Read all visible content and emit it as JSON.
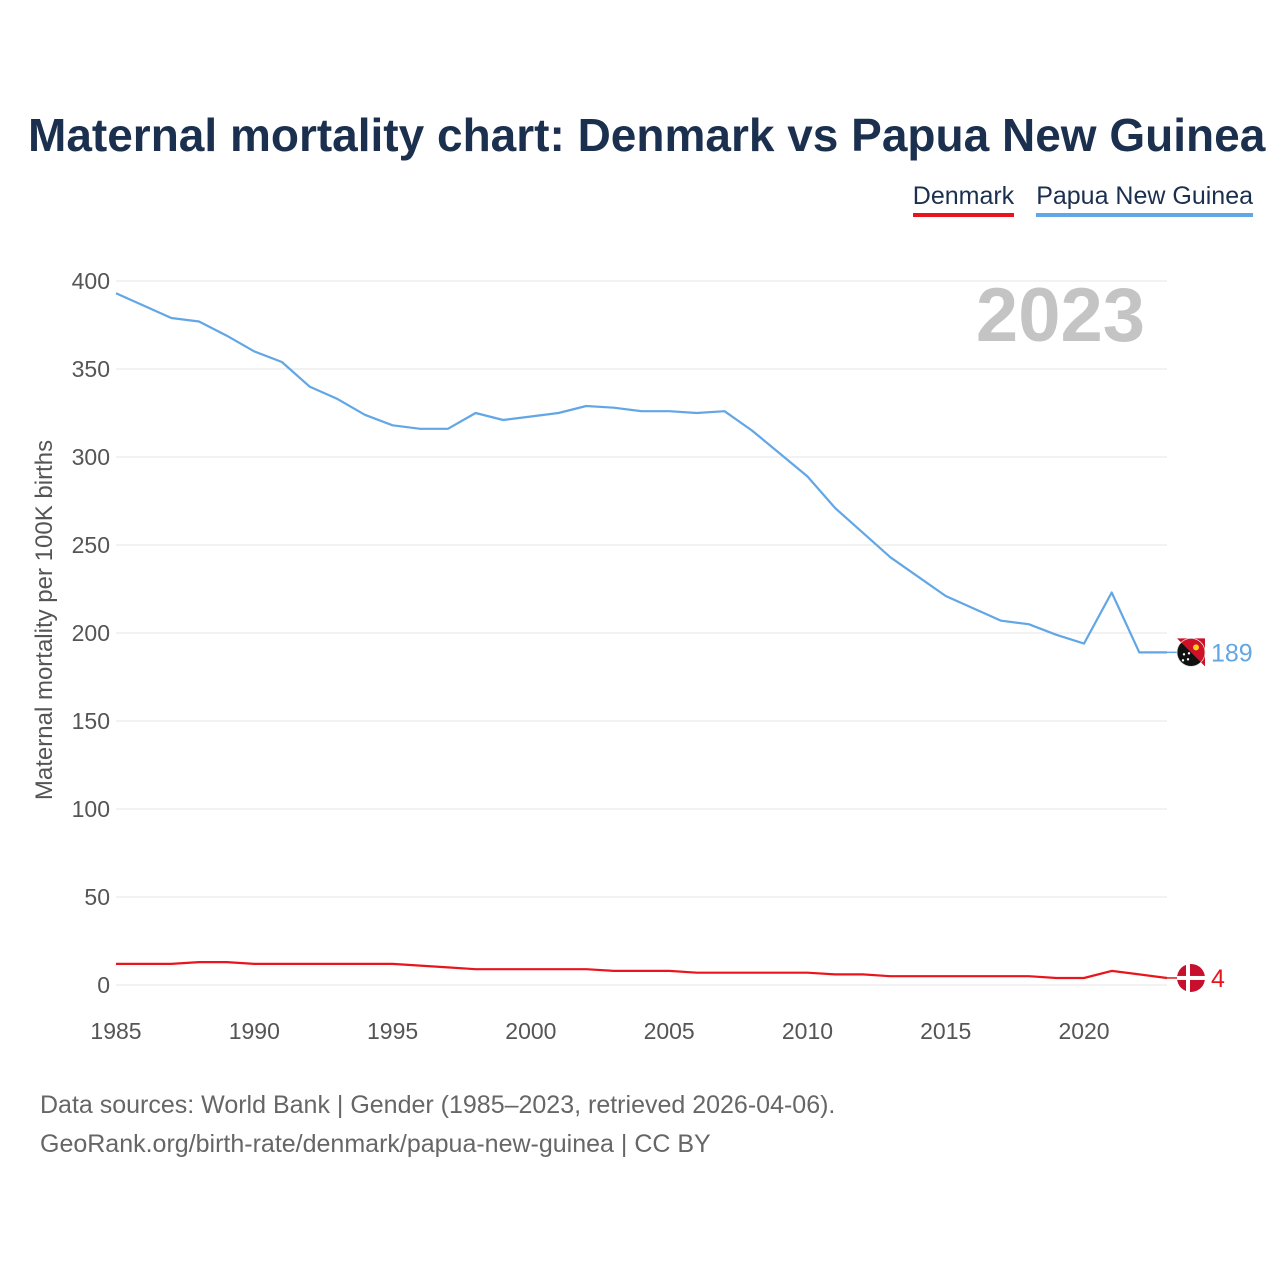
{
  "title": "Maternal mortality chart: Denmark vs Papua New Guinea",
  "legend": [
    {
      "label": "Denmark",
      "color": "#e8161c"
    },
    {
      "label": "Papua New Guinea",
      "color": "#62a6e6"
    }
  ],
  "year_label": "2023",
  "footer": {
    "line1": "Data sources: World Bank | Gender (1985–2023, retrieved 2026-04-06).",
    "line2": "GeoRank.org/birth-rate/denmark/papua-new-guinea | CC BY"
  },
  "chart_data": {
    "type": "line",
    "title": "Maternal mortality chart: Denmark vs Papua New Guinea",
    "xlabel": "",
    "ylabel": "Maternal mortality per 100K births",
    "xlim": [
      1985,
      2023
    ],
    "ylim": [
      0,
      400
    ],
    "x_ticks": [
      1985,
      1990,
      1995,
      2000,
      2005,
      2010,
      2015,
      2020
    ],
    "y_ticks": [
      0,
      50,
      100,
      150,
      200,
      250,
      300,
      350,
      400
    ],
    "grid": true,
    "legend_position": "top-right",
    "x": [
      1985,
      1986,
      1987,
      1988,
      1989,
      1990,
      1991,
      1992,
      1993,
      1994,
      1995,
      1996,
      1997,
      1998,
      1999,
      2000,
      2001,
      2002,
      2003,
      2004,
      2005,
      2006,
      2007,
      2008,
      2009,
      2010,
      2011,
      2012,
      2013,
      2014,
      2015,
      2016,
      2017,
      2018,
      2019,
      2020,
      2021,
      2022,
      2023
    ],
    "series": [
      {
        "name": "Denmark",
        "color": "#e8161c",
        "end_label": "4",
        "values": [
          12,
          12,
          12,
          13,
          13,
          12,
          12,
          12,
          12,
          12,
          12,
          11,
          10,
          9,
          9,
          9,
          9,
          9,
          8,
          8,
          8,
          7,
          7,
          7,
          7,
          7,
          6,
          6,
          5,
          5,
          5,
          5,
          5,
          5,
          4,
          4,
          8,
          6,
          4
        ]
      },
      {
        "name": "Papua New Guinea",
        "color": "#62a6e6",
        "end_label": "189",
        "values": [
          393,
          386,
          379,
          377,
          369,
          360,
          354,
          340,
          333,
          324,
          318,
          316,
          316,
          325,
          321,
          323,
          325,
          329,
          328,
          326,
          326,
          325,
          326,
          315,
          302,
          289,
          271,
          257,
          243,
          232,
          221,
          214,
          207,
          205,
          199,
          194,
          223,
          189,
          189
        ]
      }
    ]
  }
}
